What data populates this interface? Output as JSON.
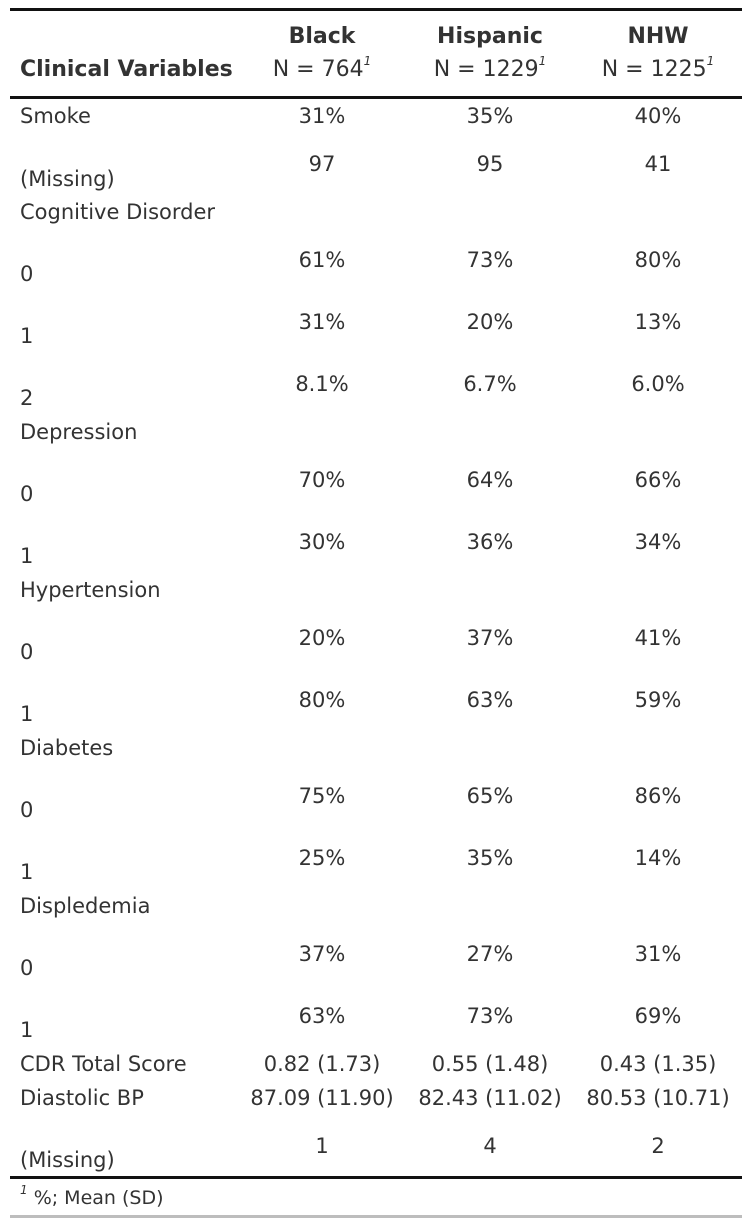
{
  "table": {
    "header": {
      "variable_col": "Clinical Variables",
      "groups": [
        {
          "name": "Black",
          "n": "N = 764",
          "sup": "1"
        },
        {
          "name": "Hispanic",
          "n": "N = 1229",
          "sup": "1"
        },
        {
          "name": "NHW",
          "n": "N = 1225",
          "sup": "1"
        }
      ]
    },
    "rows": [
      {
        "label": "Smoke",
        "values": [
          "31%",
          "35%",
          "40%"
        ]
      },
      {
        "label": "(Missing)",
        "values": [
          "97",
          "95",
          "41"
        ]
      },
      {
        "label": "Cognitive Disorder",
        "values": [
          "",
          "",
          ""
        ]
      },
      {
        "label": "0",
        "values": [
          "61%",
          "73%",
          "80%"
        ]
      },
      {
        "label": "1",
        "values": [
          "31%",
          "20%",
          "13%"
        ]
      },
      {
        "label": "2",
        "values": [
          "8.1%",
          "6.7%",
          "6.0%"
        ]
      },
      {
        "label": "Depression",
        "values": [
          "",
          "",
          ""
        ]
      },
      {
        "label": "0",
        "values": [
          "70%",
          "64%",
          "66%"
        ]
      },
      {
        "label": "1",
        "values": [
          "30%",
          "36%",
          "34%"
        ]
      },
      {
        "label": "Hypertension",
        "values": [
          "",
          "",
          ""
        ]
      },
      {
        "label": "0",
        "values": [
          "20%",
          "37%",
          "41%"
        ]
      },
      {
        "label": "1",
        "values": [
          "80%",
          "63%",
          "59%"
        ]
      },
      {
        "label": "Diabetes",
        "values": [
          "",
          "",
          ""
        ]
      },
      {
        "label": "0",
        "values": [
          "75%",
          "65%",
          "86%"
        ]
      },
      {
        "label": "1",
        "values": [
          "25%",
          "35%",
          "14%"
        ]
      },
      {
        "label": "Displedemia",
        "values": [
          "",
          "",
          ""
        ]
      },
      {
        "label": "0",
        "values": [
          "37%",
          "27%",
          "31%"
        ]
      },
      {
        "label": "1",
        "values": [
          "63%",
          "73%",
          "69%"
        ]
      },
      {
        "label": "CDR Total Score",
        "values": [
          "0.82 (1.73)",
          "0.55 (1.48)",
          "0.43 (1.35)"
        ]
      },
      {
        "label": "Diastolic BP",
        "values": [
          "87.09 (11.90)",
          "82.43 (11.02)",
          "80.53 (10.71)"
        ]
      },
      {
        "label": "(Missing)",
        "values": [
          "1",
          "4",
          "2"
        ]
      }
    ],
    "footnote": {
      "sup": "1",
      "text": "%; Mean (SD)"
    }
  }
}
